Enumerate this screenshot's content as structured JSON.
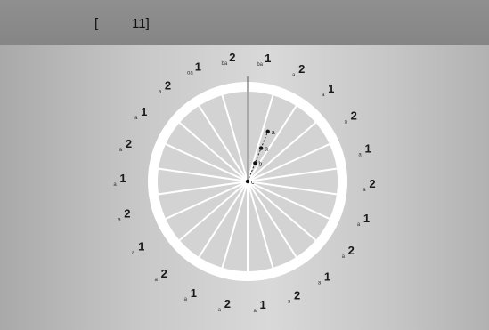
{
  "header": {
    "bracket_open": "[",
    "index_text": "11]"
  },
  "dial": {
    "segment_count": 22,
    "colors": {
      "disc_fill": "#d3d3d3",
      "rim": "#ffffff",
      "spokes": "#ffffff",
      "ink": "#1a1a1a"
    },
    "outer_labels": [
      {
        "num": "1",
        "sub": "ba"
      },
      {
        "num": "2",
        "sub": "a"
      },
      {
        "num": "1",
        "sub": "a"
      },
      {
        "num": "2",
        "sub": "a"
      },
      {
        "num": "1",
        "sub": "a"
      },
      {
        "num": "2",
        "sub": "a"
      },
      {
        "num": "1",
        "sub": "a"
      },
      {
        "num": "2",
        "sub": "a"
      },
      {
        "num": "1",
        "sub": "a"
      },
      {
        "num": "2",
        "sub": "a"
      },
      {
        "num": "1",
        "sub": "a"
      },
      {
        "num": "2",
        "sub": "a"
      },
      {
        "num": "1",
        "sub": "a"
      },
      {
        "num": "2",
        "sub": "a"
      },
      {
        "num": "1",
        "sub": "a"
      },
      {
        "num": "2",
        "sub": "a"
      },
      {
        "num": "1",
        "sub": "a"
      },
      {
        "num": "2",
        "sub": "a"
      },
      {
        "num": "1",
        "sub": "a"
      },
      {
        "num": "2",
        "sub": "a"
      },
      {
        "num": "1",
        "sub": "oa"
      },
      {
        "num": "2",
        "sub": "ba"
      }
    ],
    "markers": [
      {
        "label": "c",
        "angle_deg": 0,
        "radius_frac": 0.0
      },
      {
        "label": "b",
        "angle_deg": 22,
        "radius_frac": 0.22
      },
      {
        "label": "a",
        "angle_deg": 22,
        "radius_frac": 0.4
      },
      {
        "label": "a",
        "angle_deg": 22,
        "radius_frac": 0.6
      }
    ]
  }
}
